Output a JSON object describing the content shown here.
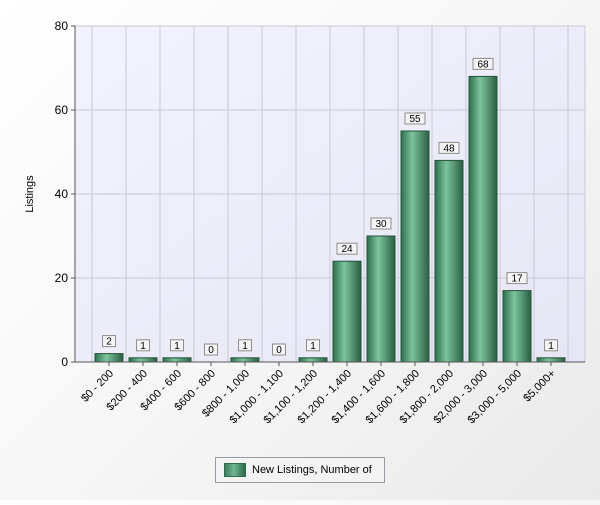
{
  "chart_data": {
    "type": "bar",
    "ylabel": "Listings",
    "ylim": [
      0,
      80
    ],
    "yticks": [
      0,
      20,
      40,
      60,
      80
    ],
    "grid": true,
    "legend_position": "bottom-center",
    "categories": [
      "$0 - 200",
      "$200 - 400",
      "$400 - 600",
      "$600 - 800",
      "$800 - 1,000",
      "$1,000 - 1,100",
      "$1,100 - 1,200",
      "$1,200 - 1,400",
      "$1,400 - 1,600",
      "$1,600 - 1,800",
      "$1,800 - 2,000",
      "$2,000 - 3,000",
      "$3,000 - 5,000",
      "$5,000+"
    ],
    "series": [
      {
        "name": "New Listings, Number of",
        "values": [
          2,
          1,
          1,
          0,
          1,
          0,
          1,
          24,
          30,
          55,
          48,
          68,
          17,
          1
        ]
      }
    ],
    "colors": {
      "bar": "#3f8a62",
      "bar_highlight": "#7cc49d",
      "bar_shadow": "#2a5e42",
      "plot_bg": "#ebebfa",
      "grid": "#c9c9d6"
    }
  }
}
